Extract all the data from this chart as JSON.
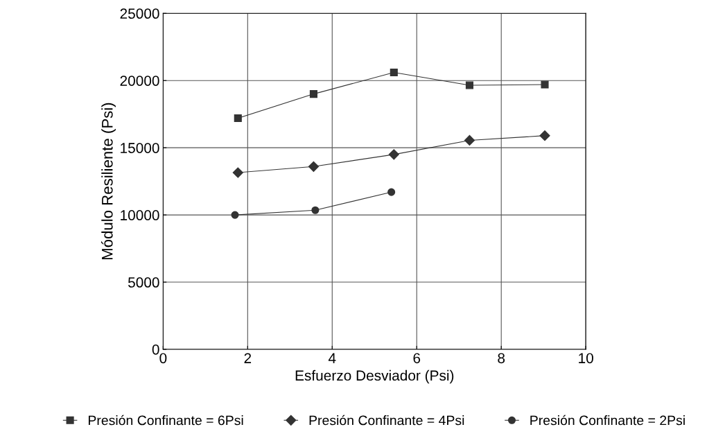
{
  "chart_data": {
    "type": "line",
    "xlabel": "Esfuerzo Desviador (Psi)",
    "ylabel": "Módulo Resiliente (Psi)",
    "xlim": [
      0,
      10
    ],
    "xticks": [
      0,
      2,
      4,
      6,
      8,
      10
    ],
    "ylim": [
      0,
      25000
    ],
    "yticks": [
      0,
      5000,
      10000,
      15000,
      20000,
      25000
    ],
    "grid": true,
    "legend": "bottom",
    "series": [
      {
        "name": "Presión Confinante = 6Psi",
        "color": "#333333",
        "marker": "square",
        "x": [
          1.77,
          3.56,
          5.46,
          7.25,
          9.03
        ],
        "values": [
          17200,
          19000,
          20600,
          19650,
          19700
        ]
      },
      {
        "name": "Presión Confinante = 4Psi",
        "color": "#333333",
        "marker": "diamond",
        "x": [
          1.77,
          3.56,
          5.46,
          7.25,
          9.03
        ],
        "values": [
          13150,
          13600,
          14500,
          15550,
          15900
        ]
      },
      {
        "name": "Presión Confinante = 2Psi",
        "color": "#333333",
        "marker": "circle",
        "x": [
          1.7,
          3.6,
          5.4
        ],
        "values": [
          10000,
          10350,
          11700
        ]
      }
    ]
  }
}
